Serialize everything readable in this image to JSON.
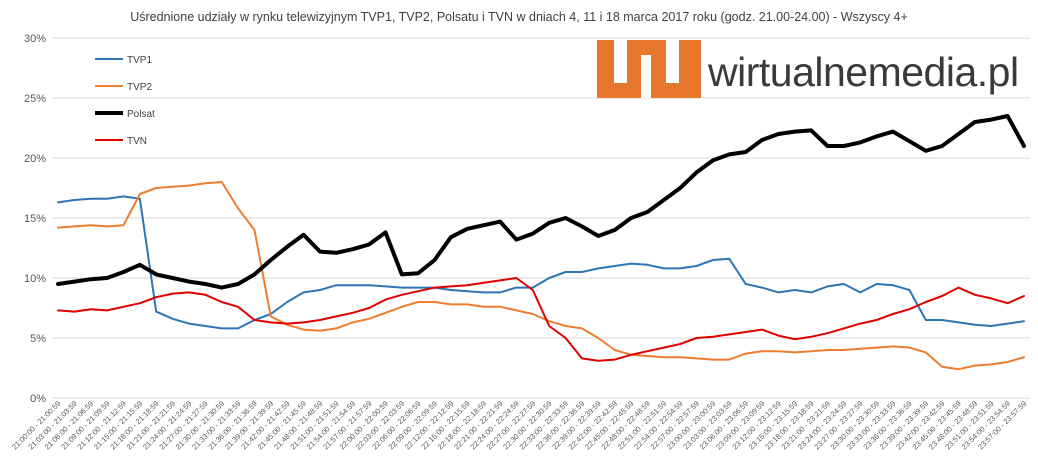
{
  "chart_data": {
    "type": "line",
    "title": "Uśrednione udziały w rynku telewizyjnym TVP1, TVP2, Polsatu i TVN w dniach 4, 11 i 18 marca 2017 roku (godz. 21.00-24.00) - Wszyscy 4+",
    "xlabel": "",
    "ylabel": "",
    "ylim": [
      0,
      30
    ],
    "yticks": [
      "0%",
      "5%",
      "10%",
      "15%",
      "20%",
      "25%",
      "30%"
    ],
    "grid": true,
    "legend_position": "top-left",
    "categories": [
      "21:00:00 - 21:00:59",
      "21:03:00 - 21:03:59",
      "21:06:00 - 21:06:59",
      "21:09:00 - 21:09:59",
      "21:12:00 - 21:12:59",
      "21:15:00 - 21:15:59",
      "21:18:00 - 21:18:59",
      "21:21:00 - 21:21:59",
      "21:24:00 - 21:24:59",
      "21:27:00 - 21:27:59",
      "21:30:00 - 21:30:59",
      "21:33:00 - 21:33:59",
      "21:36:00 - 21:36:59",
      "21:39:00 - 21:39:59",
      "21:42:00 - 21:42:59",
      "21:45:00 - 21:45:59",
      "21:48:00 - 21:48:59",
      "21:51:00 - 21:51:59",
      "21:54:00 - 21:54:59",
      "21:57:00 - 21:57:59",
      "22:00:00 - 22:00:59",
      "22:03:00 - 22:03:59",
      "22:06:00 - 22:06:59",
      "22:09:00 - 22:09:59",
      "22:12:00 - 22:12:59",
      "22:15:00 - 22:15:59",
      "22:18:00 - 22:18:59",
      "22:21:00 - 22:21:59",
      "22:24:00 - 22:24:59",
      "22:27:00 - 22:27:59",
      "22:30:00 - 22:30:59",
      "22:33:00 - 22:33:59",
      "22:36:00 - 22:36:59",
      "22:39:00 - 22:39:59",
      "22:42:00 - 22:42:59",
      "22:45:00 - 22:45:59",
      "22:48:00 - 22:48:59",
      "22:51:00 - 22:51:59",
      "22:54:00 - 22:54:59",
      "22:57:00 - 22:57:59",
      "23:00:00 - 23:00:59",
      "23:03:00 - 23:03:59",
      "23:06:00 - 23:06:59",
      "23:09:00 - 23:09:59",
      "23:12:00 - 23:12:59",
      "23:15:00 - 23:15:59",
      "23:18:00 - 23:18:59",
      "23:21:00 - 23:21:59",
      "23:24:00 - 23:24:59",
      "23:27:00 - 23:27:59",
      "23:30:00 - 23:30:59",
      "23:33:00 - 23:33:59",
      "23:36:00 - 23:36:59",
      "23:39:00 - 23:39:59",
      "23:42:00 - 23:42:59",
      "23:45:00 - 23:45:59",
      "23:48:00 - 23:48:59",
      "23:51:00 - 23:51:59",
      "23:54:00 - 23:54:59",
      "23:57:00 - 23:57:59"
    ],
    "series": [
      {
        "name": "TVP1",
        "color": "#2e75b6",
        "values": [
          16.3,
          16.5,
          16.6,
          16.6,
          16.8,
          16.6,
          7.2,
          6.6,
          6.2,
          6.0,
          5.8,
          5.8,
          6.5,
          7.0,
          8.0,
          8.8,
          9.0,
          9.4,
          9.4,
          9.4,
          9.3,
          9.2,
          9.2,
          9.2,
          9.0,
          8.9,
          8.8,
          8.8,
          9.2,
          9.2,
          10.0,
          10.5,
          10.5,
          10.8,
          11.0,
          11.2,
          11.1,
          10.8,
          10.8,
          11.0,
          11.5,
          11.6,
          9.5,
          9.2,
          8.8,
          9.0,
          8.8,
          9.3,
          9.5,
          8.8,
          9.5,
          9.4,
          9.0,
          6.5,
          6.5,
          6.3,
          6.1,
          6.0,
          6.2,
          6.4
        ]
      },
      {
        "name": "TVP2",
        "color": "#ed7d31",
        "values": [
          14.2,
          14.3,
          14.4,
          14.3,
          14.4,
          17.0,
          17.5,
          17.6,
          17.7,
          17.9,
          18.0,
          15.8,
          14.0,
          6.8,
          6.1,
          5.7,
          5.6,
          5.8,
          6.3,
          6.6,
          7.1,
          7.6,
          8.0,
          8.0,
          7.8,
          7.8,
          7.6,
          7.6,
          7.3,
          7.0,
          6.4,
          6.0,
          5.8,
          5.0,
          4.0,
          3.6,
          3.5,
          3.4,
          3.4,
          3.3,
          3.2,
          3.2,
          3.7,
          3.9,
          3.9,
          3.8,
          3.9,
          4.0,
          4.0,
          4.1,
          4.2,
          4.3,
          4.2,
          3.8,
          2.6,
          2.4,
          2.7,
          2.8,
          3.0,
          3.4
        ]
      },
      {
        "name": "Polsat",
        "color": "#000000",
        "values": [
          9.5,
          9.7,
          9.9,
          10.0,
          10.5,
          11.1,
          10.3,
          10.0,
          9.7,
          9.5,
          9.2,
          9.5,
          10.3,
          11.5,
          12.6,
          13.6,
          12.2,
          12.1,
          12.4,
          12.8,
          13.8,
          10.3,
          10.4,
          11.5,
          13.4,
          14.1,
          14.4,
          14.7,
          13.2,
          13.7,
          14.6,
          15.0,
          14.3,
          13.5,
          14.0,
          15.0,
          15.5,
          16.5,
          17.5,
          18.8,
          19.8,
          20.3,
          20.5,
          21.5,
          22.0,
          22.2,
          22.3,
          21.0,
          21.0,
          21.3,
          21.8,
          22.2,
          21.4,
          20.6,
          21.0,
          22.0,
          23.0,
          23.2,
          23.5,
          21.0
        ]
      },
      {
        "name": "TVN",
        "color": "#e00000",
        "values": [
          7.3,
          7.2,
          7.4,
          7.3,
          7.6,
          7.9,
          8.4,
          8.7,
          8.8,
          8.6,
          8.0,
          7.6,
          6.5,
          6.3,
          6.2,
          6.3,
          6.5,
          6.8,
          7.1,
          7.5,
          8.2,
          8.6,
          8.9,
          9.2,
          9.3,
          9.4,
          9.6,
          9.8,
          10.0,
          9.0,
          6.0,
          5.0,
          3.3,
          3.1,
          3.2,
          3.6,
          3.9,
          4.2,
          4.5,
          5.0,
          5.1,
          5.3,
          5.5,
          5.7,
          5.2,
          4.9,
          5.1,
          5.4,
          5.8,
          6.2,
          6.5,
          7.0,
          7.4,
          8.0,
          8.5,
          9.2,
          8.6,
          8.3,
          7.9,
          8.5
        ]
      }
    ]
  },
  "watermark": {
    "brand_text": "wirtualnemedia.pl",
    "brand_color": "#e8772e",
    "text_color": "#3a3a3a"
  }
}
